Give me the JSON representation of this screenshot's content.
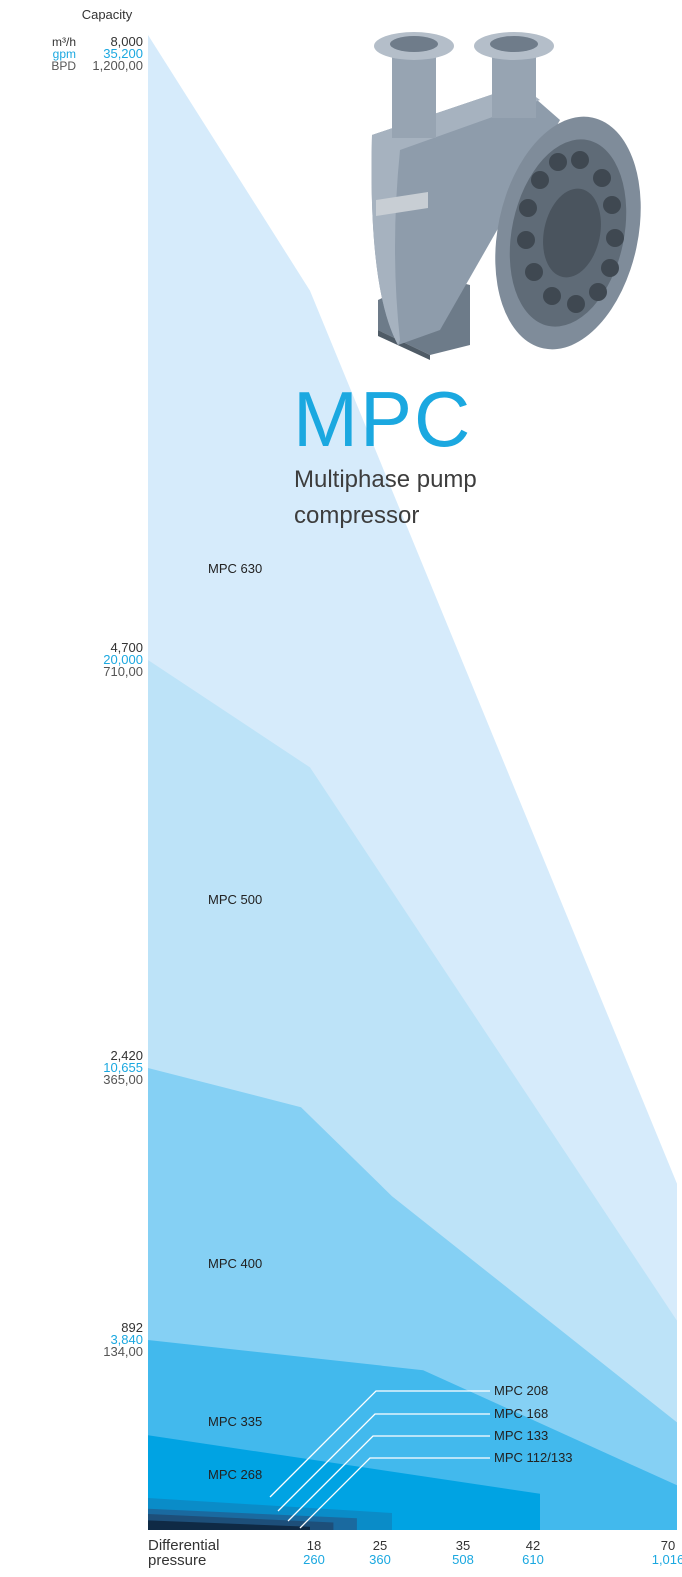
{
  "chart_data": {
    "type": "area",
    "title": "MPC",
    "subtitle": "Multiphase pump compressor",
    "ylabel": "Capacity",
    "xlabel": "Differential pressure",
    "units_y": [
      "m³/h",
      "gpm",
      "BPD"
    ],
    "y_ticks": [
      {
        "m3h": "8,000",
        "gpm": "35,200",
        "bpd": "1,200,00"
      },
      {
        "m3h": "4,700",
        "gpm": "20,000",
        "bpd": "710,00"
      },
      {
        "m3h": "2,420",
        "gpm": "10,655",
        "bpd": "365,00"
      },
      {
        "m3h": "892",
        "gpm": "3,840",
        "bpd": "134,00"
      }
    ],
    "x_ticks": [
      {
        "a": "18",
        "b": "260"
      },
      {
        "a": "25",
        "b": "360"
      },
      {
        "a": "35",
        "b": "508"
      },
      {
        "a": "42",
        "b": "610"
      },
      {
        "a": "70",
        "b": "1,016"
      }
    ],
    "series": [
      {
        "name": "MPC 630",
        "color": "#d6ebfb",
        "points": [
          [
            0,
            8000
          ],
          [
            18,
            6650
          ],
          [
            70,
            1770
          ]
        ]
      },
      {
        "name": "MPC 500",
        "color": "#bde3f8",
        "points": [
          [
            0,
            4700
          ],
          [
            18,
            4100
          ],
          [
            70,
            1000
          ]
        ]
      },
      {
        "name": "MPC 400",
        "color": "#85d0f4",
        "points": [
          [
            0,
            2420
          ],
          [
            17,
            2200
          ],
          [
            25,
            1700
          ],
          [
            70,
            505
          ]
        ]
      },
      {
        "name": "MPC 335",
        "color": "#42b9ed",
        "points": [
          [
            0,
            892
          ],
          [
            29,
            750
          ],
          [
            70,
            210
          ]
        ]
      },
      {
        "name": "MPC 268",
        "color": "#00a3e3",
        "points": [
          [
            0,
            445
          ],
          [
            42,
            170
          ],
          [
            42,
            0
          ]
        ]
      },
      {
        "name": "MPC 208",
        "color": "#0a8cc8",
        "points": [
          [
            0,
            150
          ],
          [
            25,
            80
          ],
          [
            25,
            0
          ]
        ]
      },
      {
        "name": "MPC 168",
        "color": "#1a6aa0",
        "points": [
          [
            0,
            100
          ],
          [
            22,
            55
          ],
          [
            22,
            0
          ]
        ]
      },
      {
        "name": "MPC 133",
        "color": "#1d4f7a",
        "points": [
          [
            0,
            75
          ],
          [
            20,
            35
          ],
          [
            20,
            0
          ]
        ]
      },
      {
        "name": "MPC 112/133",
        "color": "#0f2a45",
        "points": [
          [
            0,
            45
          ],
          [
            18,
            15
          ],
          [
            18,
            0
          ]
        ]
      }
    ]
  }
}
